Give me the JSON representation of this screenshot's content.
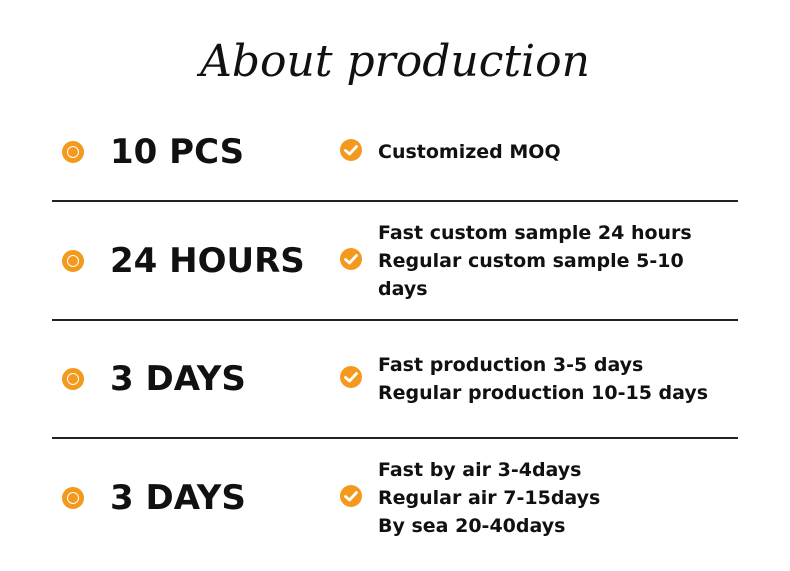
{
  "title": "About production",
  "rows": [
    {
      "heading": "10 PCS",
      "lines": [
        "Customized MOQ"
      ]
    },
    {
      "heading": "24 HOURS",
      "lines": [
        "Fast custom sample 24 hours",
        "Regular custom sample 5-10 days"
      ]
    },
    {
      "heading": "3 DAYS",
      "lines": [
        "Fast production 3-5 days",
        "Regular production 10-15 days"
      ]
    },
    {
      "heading": "3 DAYS",
      "lines": [
        "Fast by air 3-4days",
        "Regular air 7-15days",
        "By sea 20-40days"
      ]
    }
  ]
}
